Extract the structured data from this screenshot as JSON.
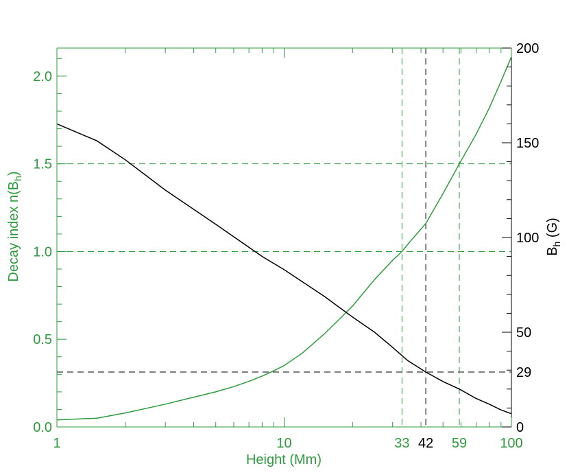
{
  "chart_data": {
    "type": "line",
    "x_scale": "log",
    "xlim": [
      1,
      100
    ],
    "xlabel": "Height (Mm)",
    "ylabel_left": "Decay index n(B",
    "ylabel_left_sub": "h",
    "ylabel_left_tail": ")",
    "ylim_left": [
      0,
      2.16
    ],
    "ylabel_right": "B",
    "ylabel_right_sub": "h",
    "ylabel_right_tail": " (G)",
    "ylim_right": [
      0,
      200
    ],
    "x_ticks": [
      {
        "value": 1,
        "label": "1",
        "color": "#2e9b3f"
      },
      {
        "value": 10,
        "label": "10",
        "color": "#2e9b3f"
      },
      {
        "value": 33,
        "label": "33",
        "color": "#2e9b3f"
      },
      {
        "value": 42,
        "label": "42",
        "color": "#000000"
      },
      {
        "value": 59,
        "label": "59",
        "color": "#2e9b3f"
      },
      {
        "value": 100,
        "label": "100",
        "color": "#2e9b3f"
      }
    ],
    "y_left_ticks": [
      {
        "value": 0.0,
        "label": "0.0"
      },
      {
        "value": 0.5,
        "label": "0.5"
      },
      {
        "value": 1.0,
        "label": "1.0"
      },
      {
        "value": 1.5,
        "label": "1.5"
      },
      {
        "value": 2.0,
        "label": "2.0"
      }
    ],
    "y_right_ticks": [
      {
        "value": 0,
        "label": "0"
      },
      {
        "value": 29,
        "label": "29"
      },
      {
        "value": 50,
        "label": "50"
      },
      {
        "value": 100,
        "label": "100"
      },
      {
        "value": 150,
        "label": "150"
      },
      {
        "value": 200,
        "label": "200"
      }
    ],
    "series": [
      {
        "axis": "left",
        "color": "#2e9b3f",
        "x": [
          1,
          1.5,
          2,
          3,
          4,
          5,
          6,
          7,
          8,
          9,
          10,
          12,
          15,
          18,
          20,
          25,
          30,
          33,
          36,
          42,
          50,
          59,
          70,
          80,
          90,
          100
        ],
        "y": [
          0.04,
          0.05,
          0.08,
          0.13,
          0.17,
          0.2,
          0.23,
          0.26,
          0.29,
          0.32,
          0.35,
          0.42,
          0.53,
          0.63,
          0.69,
          0.84,
          0.95,
          1.0,
          1.06,
          1.16,
          1.33,
          1.5,
          1.67,
          1.82,
          1.97,
          2.11
        ]
      },
      {
        "axis": "right",
        "color": "#000000",
        "x": [
          1,
          1.5,
          2,
          3,
          5,
          8,
          10,
          15,
          20,
          25,
          30,
          35,
          42,
          50,
          59,
          70,
          80,
          90,
          100
        ],
        "y": [
          160,
          151,
          141,
          125,
          107,
          90,
          83,
          69,
          58,
          50,
          42,
          35,
          29,
          24,
          20,
          15,
          12,
          9,
          7
        ]
      }
    ],
    "reference_lines": [
      {
        "orientation": "horizontal",
        "axis": "left",
        "value": 1.5,
        "color": "#2e9b3f"
      },
      {
        "orientation": "horizontal",
        "axis": "left",
        "value": 1.0,
        "color": "#2e9b3f"
      },
      {
        "orientation": "horizontal",
        "axis": "right",
        "value": 29,
        "color": "#000000"
      },
      {
        "orientation": "vertical",
        "value": 33,
        "color": "#2e9b3f"
      },
      {
        "orientation": "vertical",
        "value": 42,
        "color": "#000000"
      },
      {
        "orientation": "vertical",
        "value": 59,
        "color": "#2e9b3f"
      }
    ],
    "colors": {
      "green": "#2e9b3f",
      "black": "#000000"
    }
  }
}
